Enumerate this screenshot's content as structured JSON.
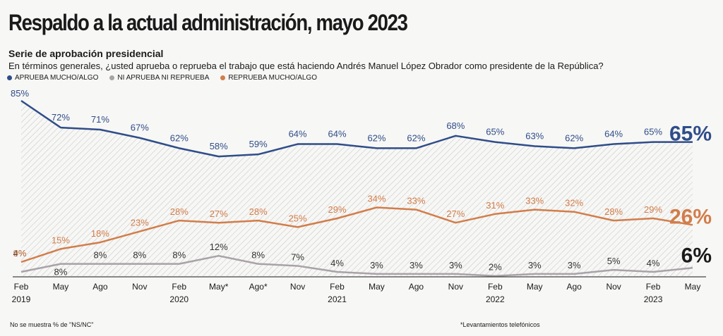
{
  "title": "Respaldo a la actual administración, mayo 2023",
  "subtitle": "Serie de aprobación presidencial",
  "question": "En términos generales, ¿usted aprueba o reprueba el trabajo que está haciendo Andrés Manuel López Obrador como presidente de la República?",
  "footnotes": {
    "left": "No se muestra % de \"NS/NC\"",
    "right": "*Levantamientos telefónicos"
  },
  "colors": {
    "aprueba": "#2f4d8a",
    "ni": "#a9a2a8",
    "reprueba": "#d27d4a"
  },
  "chart_data": {
    "type": "line",
    "x": [
      "Feb",
      "May",
      "Ago",
      "Nov",
      "Feb",
      "May*",
      "Ago*",
      "Nov",
      "Feb",
      "May",
      "Ago",
      "Nov",
      "Feb",
      "May",
      "Ago",
      "Nov",
      "Feb",
      "May"
    ],
    "year_labels": [
      {
        "index": 0,
        "label": "2019"
      },
      {
        "index": 4,
        "label": "2020"
      },
      {
        "index": 8,
        "label": "2021"
      },
      {
        "index": 12,
        "label": "2022"
      },
      {
        "index": 16,
        "label": "2023"
      }
    ],
    "series": [
      {
        "key": "aprueba",
        "name": "APRUEBA MUCHO/ALGO",
        "values": [
          85,
          72,
          71,
          67,
          62,
          58,
          59,
          64,
          64,
          62,
          62,
          68,
          65,
          63,
          62,
          64,
          65,
          65
        ]
      },
      {
        "key": "ni",
        "name": "NI APRUEBA NI REPRUEBA",
        "values": [
          4,
          8,
          8,
          8,
          8,
          12,
          8,
          7,
          4,
          3,
          3,
          3,
          2,
          3,
          3,
          5,
          4,
          6
        ]
      },
      {
        "key": "reprueba",
        "name": "REPRUEBA MUCHO/ALGO",
        "values": [
          9,
          15,
          18,
          23,
          28,
          27,
          28,
          25,
          29,
          34,
          33,
          27,
          31,
          33,
          32,
          28,
          29,
          26
        ]
      }
    ],
    "value_suffix": "%",
    "legend_position": "top-left",
    "grid": false
  }
}
